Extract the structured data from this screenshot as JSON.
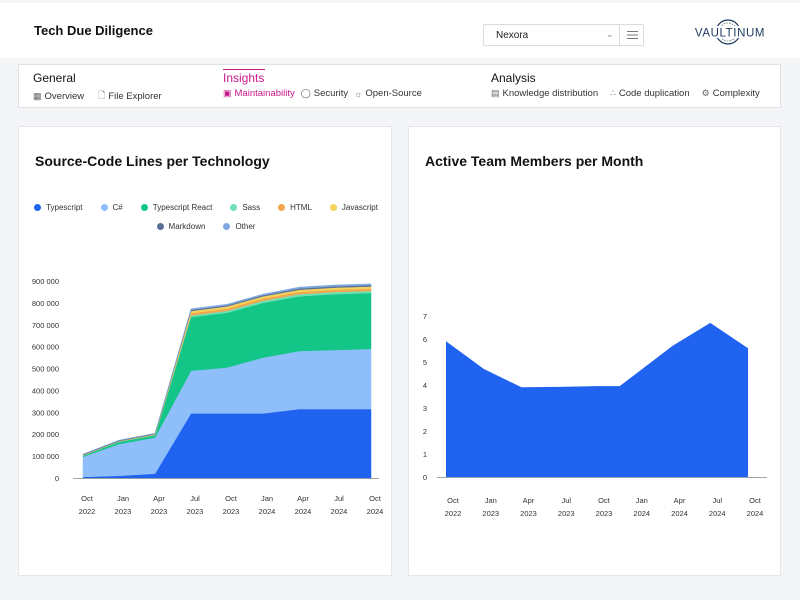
{
  "header": {
    "title": "Tech Due Diligence",
    "project_select": {
      "value": "Nexora"
    },
    "logo_text": "VAULTINUM"
  },
  "nav": {
    "groups": [
      {
        "title": "General",
        "items": [
          {
            "label": "Overview",
            "icon": "grid-icon"
          },
          {
            "label": "File Explorer",
            "icon": "file-icon"
          }
        ]
      },
      {
        "title": "Insights",
        "active": true,
        "items": [
          {
            "label": "Maintainability",
            "icon": "maintainability-icon",
            "active": true
          },
          {
            "label": "Security",
            "icon": "shield-icon"
          },
          {
            "label": "Open-Source",
            "icon": "sun-icon"
          }
        ]
      },
      {
        "title": "Analysis",
        "items": [
          {
            "label": "Knowledge distribution",
            "icon": "document-icon"
          },
          {
            "label": "Code duplication",
            "icon": "share-icon"
          },
          {
            "label": "Complexity",
            "icon": "gear-icon"
          }
        ]
      }
    ]
  },
  "colors": {
    "accent": "#c8178a",
    "primary_blue": "#1f63f0"
  },
  "chart_data": [
    {
      "type": "area",
      "stacked": true,
      "title": "Source-Code Lines per Technology",
      "x": [
        "Oct 2022",
        "Jan 2023",
        "Apr 2023",
        "Jul 2023",
        "Oct 2023",
        "Jan 2024",
        "Apr 2024",
        "Jul 2024",
        "Oct 2024"
      ],
      "tick_labels": [
        [
          "Oct",
          "2022"
        ],
        [
          "Jan",
          "2023"
        ],
        [
          "Apr",
          "2023"
        ],
        [
          "Jul",
          "2023"
        ],
        [
          "Oct",
          "2023"
        ],
        [
          "Jan",
          "2024"
        ],
        [
          "Apr",
          "2024"
        ],
        [
          "Jul",
          "2024"
        ],
        [
          "Oct",
          "2024"
        ]
      ],
      "y_ticks": [
        0,
        100000,
        200000,
        300000,
        400000,
        500000,
        600000,
        700000,
        800000,
        900000
      ],
      "y_tick_labels": [
        "0",
        "100 000",
        "200 000",
        "300 000",
        "400 000",
        "500 000",
        "600 000",
        "700 000",
        "800 000",
        "900 000"
      ],
      "ylim": [
        0,
        900000
      ],
      "legend_position": "top",
      "series": [
        {
          "name": "Typescript",
          "color": "#1f63f0",
          "values": [
            5000,
            10000,
            20000,
            295000,
            295000,
            295000,
            315000,
            315000,
            315000
          ]
        },
        {
          "name": "C#",
          "color": "#8fbffa",
          "values": [
            92000,
            145000,
            165000,
            195000,
            210000,
            255000,
            265000,
            270000,
            275000
          ]
        },
        {
          "name": "Typescript React",
          "color": "#13c586",
          "values": [
            5000,
            10000,
            10000,
            245000,
            250000,
            250000,
            250000,
            255000,
            255000
          ]
        },
        {
          "name": "Sass",
          "color": "#6fe0b6",
          "values": [
            1000,
            2000,
            2000,
            8000,
            9000,
            10000,
            10000,
            10000,
            10000
          ]
        },
        {
          "name": "HTML",
          "color": "#f5a64d",
          "values": [
            1000,
            1000,
            1000,
            10000,
            10000,
            10000,
            10000,
            10000,
            10000
          ]
        },
        {
          "name": "Javascript",
          "color": "#f2d35b",
          "values": [
            1000,
            1000,
            2000,
            10000,
            10000,
            10000,
            10000,
            10000,
            10000
          ]
        },
        {
          "name": "Markdown",
          "color": "#5a6f96",
          "values": [
            3000,
            3000,
            3000,
            5000,
            5000,
            5000,
            6000,
            6000,
            6000
          ]
        },
        {
          "name": "Other",
          "color": "#7fa8e0",
          "values": [
            1000,
            1000,
            1000,
            5000,
            5000,
            5000,
            6000,
            6000,
            6000
          ]
        }
      ]
    },
    {
      "type": "area",
      "title": "Active Team Members per Month",
      "x": [
        "Oct 2022",
        "Jan 2023",
        "Apr 2023",
        "Jul 2023",
        "Oct 2023",
        "Jan 2024",
        "Apr 2024",
        "Jul 2024",
        "Oct 2024"
      ],
      "tick_labels": [
        [
          "Oct",
          "2022"
        ],
        [
          "Jan",
          "2023"
        ],
        [
          "Apr",
          "2023"
        ],
        [
          "Jul",
          "2023"
        ],
        [
          "Oct",
          "2023"
        ],
        [
          "Jan",
          "2024"
        ],
        [
          "Apr",
          "2024"
        ],
        [
          "Jul",
          "2024"
        ],
        [
          "Oct",
          "2024"
        ]
      ],
      "y_ticks": [
        0,
        1,
        2,
        3,
        4,
        5,
        6,
        7
      ],
      "ylim": [
        0,
        7
      ],
      "points": [
        {
          "x": 0,
          "y": 5.9
        },
        {
          "x": 1.0,
          "y": 4.7
        },
        {
          "x": 2.0,
          "y": 3.9
        },
        {
          "x": 3.0,
          "y": 3.92
        },
        {
          "x": 4.0,
          "y": 3.95
        },
        {
          "x": 4.6,
          "y": 3.95
        },
        {
          "x": 6.0,
          "y": 5.7
        },
        {
          "x": 7.0,
          "y": 6.7
        },
        {
          "x": 8.0,
          "y": 5.6
        }
      ],
      "color": "#1f63f0"
    }
  ]
}
